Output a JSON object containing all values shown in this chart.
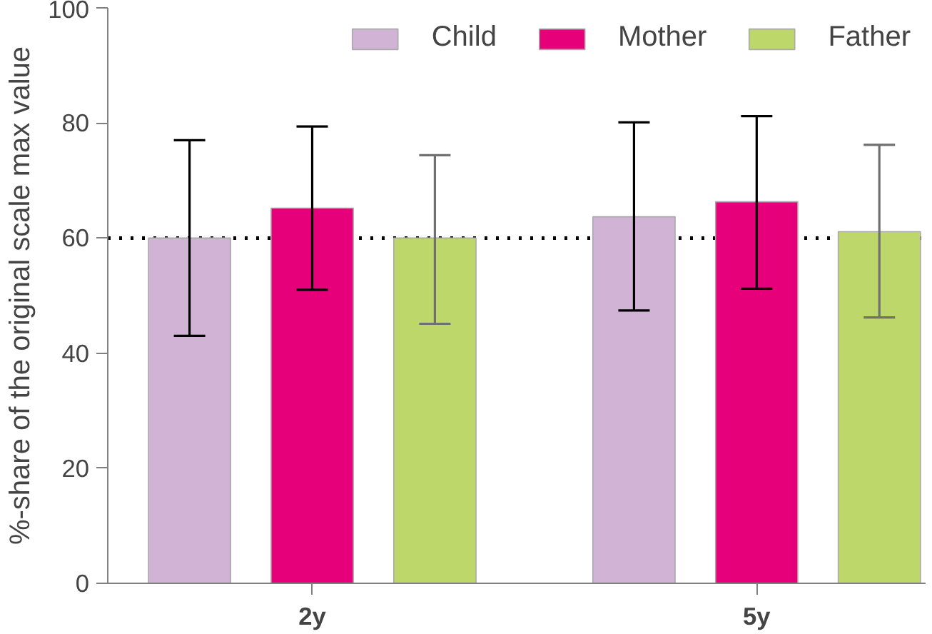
{
  "chart_data": {
    "type": "bar",
    "ylabel": "%-share of the original scale max value",
    "categories": [
      "2y",
      "5y"
    ],
    "series": [
      {
        "name": "Child",
        "color": "#d1b3d5",
        "values": [
          60,
          63.7
        ],
        "errors": [
          [
            43,
            77
          ],
          [
            47.4,
            80.1
          ]
        ]
      },
      {
        "name": "Mother",
        "color": "#e6007a",
        "values": [
          65.2,
          66.3
        ],
        "errors": [
          [
            51,
            79.4
          ],
          [
            51.2,
            81.2
          ]
        ]
      },
      {
        "name": "Father",
        "color": "#bdd76b",
        "values": [
          60,
          61.1
        ],
        "errors": [
          [
            45.1,
            74.4
          ],
          [
            46.2,
            76.2
          ]
        ]
      }
    ],
    "ylim": [
      0,
      100
    ],
    "yticks": [
      0,
      20,
      40,
      60,
      80,
      100
    ],
    "ref_lines": [
      {
        "axis": "y",
        "value": 60,
        "color": "#000000",
        "line_style": "dotted"
      }
    ],
    "grid": false,
    "legend": "top right"
  }
}
